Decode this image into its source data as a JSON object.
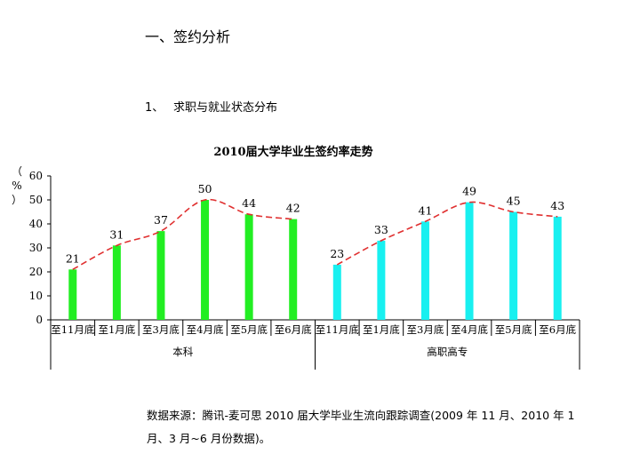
{
  "document": {
    "section_heading": "一、签约分析",
    "subsection_number": "1、",
    "subsection_title": "求职与就业状态分布",
    "source_note_line1": "数据来源：腾讯-麦可思 2010 届大学毕业生流向跟踪调查(2009 年 11 月、2010 年 1",
    "source_note_line2": "月、3 月~6 月份数据)。"
  },
  "chart_data": {
    "type": "bar",
    "title": "2010届大学毕业生签约率走势",
    "ylabel": "（%）",
    "ylim": [
      0,
      60
    ],
    "yticks": [
      "0",
      "10",
      "20",
      "30",
      "40",
      "50",
      "60"
    ],
    "categories": [
      "至11月底",
      "至1月底",
      "至3月底",
      "至4月底",
      "至5月底",
      "至6月底"
    ],
    "groups": [
      {
        "name": "本科",
        "values": [
          21,
          31,
          37,
          50,
          44,
          42
        ],
        "color": "#22ee22"
      },
      {
        "name": "高职高专",
        "values": [
          23,
          33,
          41,
          49,
          45,
          43
        ],
        "color": "#18f0f0"
      }
    ],
    "trendline_color": "#e03030",
    "trendline_style": "dashed",
    "grid": false
  }
}
